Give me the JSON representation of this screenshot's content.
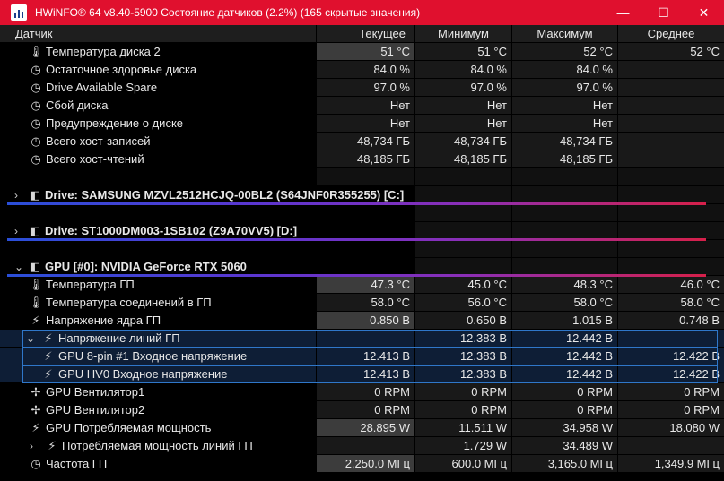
{
  "window": {
    "title": "HWiNFO® 64 v8.40-5900 Состояние датчиков (2.2%) (165 скрытые значения)",
    "minimize_glyph": "—",
    "maximize_glyph": "☐",
    "close_glyph": "✕"
  },
  "columns": {
    "sensor": "Датчик",
    "current": "Текущее",
    "min": "Минимум",
    "max": "Максимум",
    "avg": "Среднее"
  },
  "rows": [
    {
      "label": "Температура диска 2",
      "icon": "thermometer-icon",
      "glyph": "🌡",
      "cur": "51 °C",
      "min": "51 °C",
      "max": "52 °C",
      "avg": "52 °C",
      "hl": true
    },
    {
      "label": "Остаточное здоровье диска",
      "icon": "clock-icon",
      "glyph": "◷",
      "cur": "84.0 %",
      "min": "84.0 %",
      "max": "84.0 %",
      "avg": ""
    },
    {
      "label": "Drive Available Spare",
      "icon": "clock-icon",
      "glyph": "◷",
      "cur": "97.0 %",
      "min": "97.0 %",
      "max": "97.0 %",
      "avg": ""
    },
    {
      "label": "Сбой диска",
      "icon": "clock-icon",
      "glyph": "◷",
      "cur": "Нет",
      "min": "Нет",
      "max": "Нет",
      "avg": ""
    },
    {
      "label": "Предупреждение о диске",
      "icon": "clock-icon",
      "glyph": "◷",
      "cur": "Нет",
      "min": "Нет",
      "max": "Нет",
      "avg": ""
    },
    {
      "label": "Всего хост-записей",
      "icon": "clock-icon",
      "glyph": "◷",
      "cur": "48,734 ГБ",
      "min": "48,734 ГБ",
      "max": "48,734 ГБ",
      "avg": ""
    },
    {
      "label": "Всего хост-чтений",
      "icon": "clock-icon",
      "glyph": "◷",
      "cur": "48,185 ГБ",
      "min": "48,185 ГБ",
      "max": "48,185 ГБ",
      "avg": ""
    }
  ],
  "groups": [
    {
      "label": "Drive: SAMSUNG MZVL2512HCJQ-00BL2 (S64JNF0R355255) [C:]",
      "chevron": "›"
    },
    {
      "label": "Drive: ST1000DM003-1SB102 (Z9A70VV5) [D:]",
      "chevron": "›"
    },
    {
      "label": "GPU [#0]: NVIDIA GeForce RTX 5060",
      "chevron": "⌄"
    }
  ],
  "gpu_rows": [
    {
      "label": "Температура ГП",
      "icon": "thermometer-icon",
      "glyph": "🌡",
      "cur": "47.3 °C",
      "min": "45.0 °C",
      "max": "48.3 °C",
      "avg": "46.0 °C",
      "hl": true
    },
    {
      "label": "Температура соединений в ГП",
      "icon": "thermometer-icon",
      "glyph": "🌡",
      "cur": "58.0 °C",
      "min": "56.0 °C",
      "max": "58.0 °C",
      "avg": "58.0 °C"
    },
    {
      "label": "Напряжение ядра ГП",
      "icon": "lightning-icon",
      "glyph": "⚡",
      "cur": "0.850 В",
      "min": "0.650 В",
      "max": "1.015 В",
      "avg": "0.748 В",
      "hl": true
    },
    {
      "label": "Напряжение линий ГП",
      "icon": "lightning-icon",
      "glyph": "⚡",
      "chevron": "⌄",
      "cur": "",
      "min": "12.383 В",
      "max": "12.442 В",
      "avg": ""
    },
    {
      "label": "GPU 8-pin #1 Входное напряжение",
      "icon": "lightning-icon",
      "glyph": "⚡",
      "cur": "12.413 В",
      "min": "12.383 В",
      "max": "12.442 В",
      "avg": "12.422 В"
    },
    {
      "label": "GPU HV0 Входное напряжение",
      "icon": "lightning-icon",
      "glyph": "⚡",
      "cur": "12.413 В",
      "min": "12.383 В",
      "max": "12.442 В",
      "avg": "12.422 В"
    },
    {
      "label": "GPU Вентилятор1",
      "icon": "fan-icon",
      "glyph": "✢",
      "cur": "0 RPM",
      "min": "0 RPM",
      "max": "0 RPM",
      "avg": "0 RPM"
    },
    {
      "label": "GPU Вентилятор2",
      "icon": "fan-icon",
      "glyph": "✢",
      "cur": "0 RPM",
      "min": "0 RPM",
      "max": "0 RPM",
      "avg": "0 RPM"
    },
    {
      "label": "GPU Потребляемая мощность",
      "icon": "lightning-icon",
      "glyph": "⚡",
      "cur": "28.895 W",
      "min": "11.511 W",
      "max": "34.958 W",
      "avg": "18.080 W",
      "hl": true
    },
    {
      "label": "Потребляемая мощность линий ГП",
      "icon": "lightning-icon",
      "glyph": "⚡",
      "chevron": "›",
      "cur": "",
      "min": "1.729 W",
      "max": "34.489 W",
      "avg": ""
    },
    {
      "label": "Частота ГП",
      "icon": "clock-icon",
      "glyph": "◷",
      "cur": "2,250.0 МГц",
      "min": "600.0 МГц",
      "max": "3,165.0 МГц",
      "avg": "1,349.9 МГц",
      "hl": true
    }
  ]
}
